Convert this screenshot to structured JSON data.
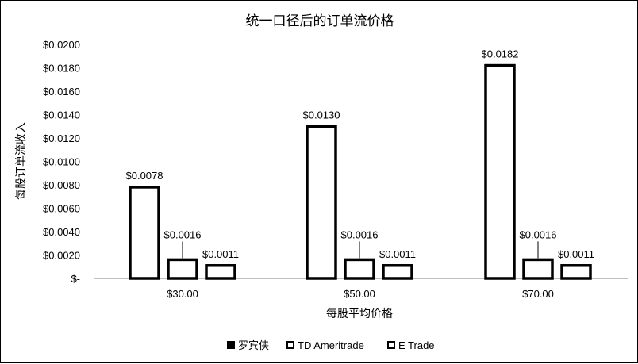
{
  "chart_data": {
    "type": "bar",
    "title": "统一口径后的订单流价格",
    "xlabel": "每股平均价格",
    "ylabel": "每股订单流收入",
    "categories": [
      "$30.00",
      "$50.00",
      "$70.00"
    ],
    "y_ticks": [
      "$-",
      "$0.0020",
      "$0.0040",
      "$0.0060",
      "$0.0080",
      "$0.0100",
      "$0.0120",
      "$0.0140",
      "$0.0160",
      "$0.0180",
      "$0.0200"
    ],
    "ylim": [
      0,
      0.02
    ],
    "grid": false,
    "legend_position": "bottom",
    "series": [
      {
        "name": "罗宾侠",
        "values": [
          0.0078,
          0.013,
          0.0182
        ],
        "labels": [
          "$0.0078",
          "$0.0130",
          "$0.0182"
        ]
      },
      {
        "name": "TD Ameritrade",
        "values": [
          0.0016,
          0.0016,
          0.0016
        ],
        "labels": [
          "$0.0016",
          "$0.0016",
          "$0.0016"
        ]
      },
      {
        "name": "E Trade",
        "values": [
          0.0011,
          0.0011,
          0.0011
        ],
        "labels": [
          "$0.0011",
          "$0.0011",
          "$0.0011"
        ]
      }
    ]
  }
}
